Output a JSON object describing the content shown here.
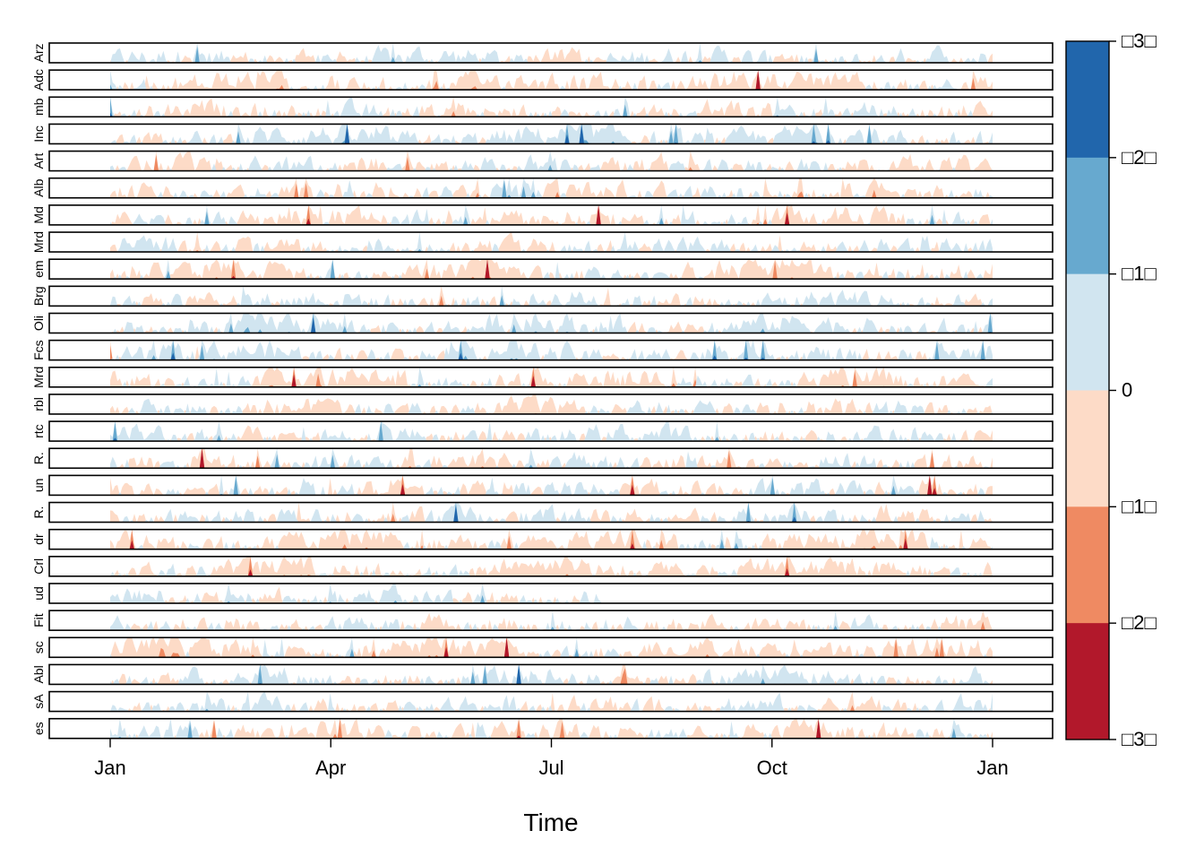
{
  "chart_data": {
    "type": "area",
    "subtype": "horizon-plot",
    "xlabel": "Time",
    "ylabel": "",
    "title": "",
    "x_ticks": [
      "Jan",
      "Apr",
      "Jul",
      "Oct",
      "Jan"
    ],
    "x_range": [
      "2000-01-01",
      "2000-12-31"
    ],
    "grid": false,
    "legend": {
      "type": "colorkey",
      "position": "right",
      "labels": [
        "□3□",
        "□2□",
        "□1□",
        "0",
        "□1□",
        "□2□",
        "□3□"
      ],
      "colors": [
        "#b2182b",
        "#ef8a62",
        "#fddbc7",
        "#d1e5f0",
        "#67a9cf",
        "#2166ac"
      ]
    },
    "bands": {
      "negative": [
        "#fddbc7",
        "#ef8a62",
        "#b2182b"
      ],
      "positive": [
        "#d1e5f0",
        "#67a9cf",
        "#2166ac"
      ]
    },
    "panels": [
      {
        "label": "Arz",
        "ends": 1
      },
      {
        "label": "Adc",
        "ends": 1
      },
      {
        "label": "mb",
        "ends": 1
      },
      {
        "label": "Inc",
        "ends": 1
      },
      {
        "label": "Art",
        "ends": 1
      },
      {
        "label": "Alb",
        "ends": 1
      },
      {
        "label": "Md",
        "ends": 1
      },
      {
        "label": "Mrd",
        "ends": 1
      },
      {
        "label": "em",
        "ends": 1
      },
      {
        "label": "Brg",
        "ends": 1
      },
      {
        "label": "Oli",
        "ends": 1
      },
      {
        "label": "Fcs",
        "ends": 1
      },
      {
        "label": "Mrd",
        "ends": 1
      },
      {
        "label": "rbl",
        "ends": 1
      },
      {
        "label": "rtc",
        "ends": 1
      },
      {
        "label": "R.",
        "ends": 1
      },
      {
        "label": "un",
        "ends": 1
      },
      {
        "label": "R.",
        "ends": 1
      },
      {
        "label": "dr",
        "ends": 1
      },
      {
        "label": "Crl",
        "ends": 1
      },
      {
        "label": "ud",
        "ends": 0.56
      },
      {
        "label": "Fit",
        "ends": 1
      },
      {
        "label": "sc",
        "ends": 1
      },
      {
        "label": "Abl",
        "ends": 1
      },
      {
        "label": "sA",
        "ends": 1
      },
      {
        "label": "es",
        "ends": 1
      }
    ]
  }
}
